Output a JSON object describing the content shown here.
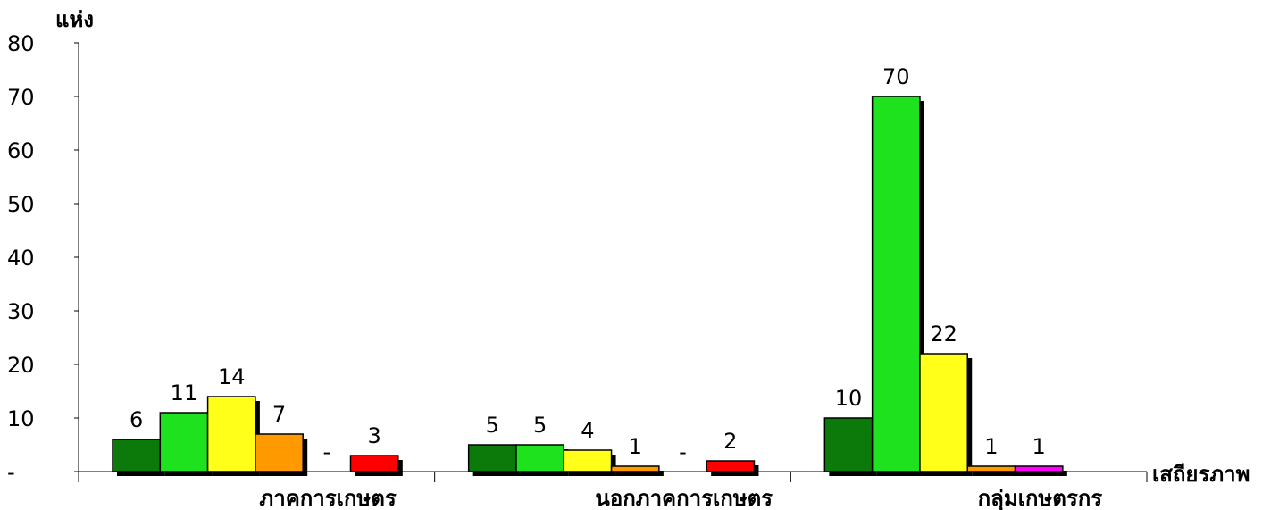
{
  "chart_data": {
    "type": "bar",
    "ylabel": "แห่ง",
    "xlabel": "เสถียรภาพ",
    "ylim": [
      0,
      80
    ],
    "yticks": [
      "-",
      "10",
      "20",
      "30",
      "40",
      "50",
      "60",
      "70",
      "80"
    ],
    "grid": false,
    "legend": "none",
    "categories": [
      "ภาคการเกษตร",
      "นอกภาคการเกษตร",
      "กลุ่มเกษตรกร"
    ],
    "series": [
      {
        "color": "#0b7a0b",
        "values": [
          6,
          5,
          10
        ],
        "labels": [
          "6",
          "5",
          "10"
        ]
      },
      {
        "color": "#1ee21e",
        "values": [
          11,
          5,
          70
        ],
        "labels": [
          "11",
          "5",
          "70"
        ]
      },
      {
        "color": "#ffff1a",
        "values": [
          14,
          4,
          22
        ],
        "labels": [
          "14",
          "4",
          "22"
        ]
      },
      {
        "color": "#ff9900",
        "values": [
          7,
          1,
          1
        ],
        "labels": [
          "7",
          "1",
          "1"
        ]
      },
      {
        "color": "#ff00ff",
        "values": [
          0,
          0,
          1
        ],
        "labels": [
          "-",
          "-",
          "1"
        ]
      },
      {
        "color": "#ff0000",
        "values": [
          3,
          2,
          0
        ],
        "labels": [
          "3",
          "2",
          ""
        ]
      }
    ]
  }
}
